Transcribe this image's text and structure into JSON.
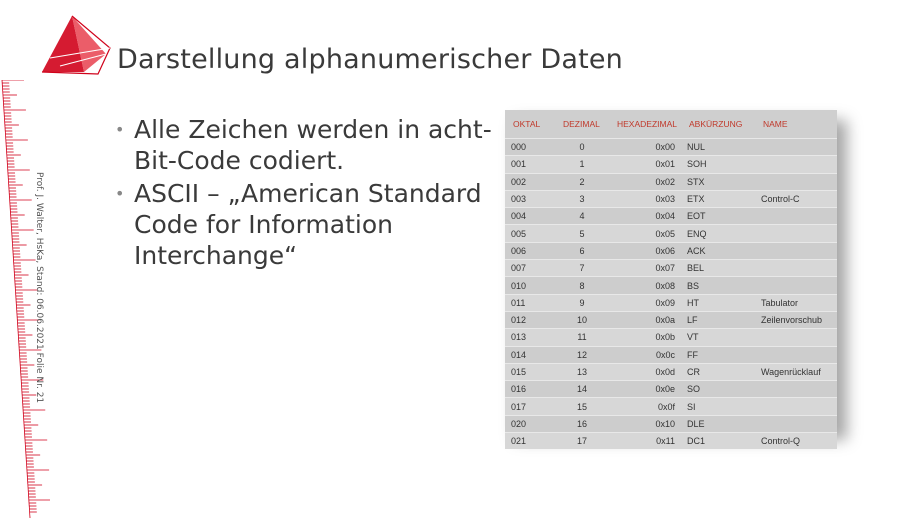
{
  "slide": {
    "title": "Darstellung alphanumerischer Daten",
    "sidetext": "Prof. J. Walter, HsKa, Stand: 06.06.2021 Folie Nr. 21"
  },
  "bullets": [
    "Alle Zeichen werden in acht-Bit-Code codiert.",
    "ASCII – „American Standard Code for Information Interchange“"
  ],
  "colors": {
    "logo": "#d0021b",
    "header": "#c0392b"
  },
  "table": {
    "headers": [
      "OKTAL",
      "DEZIMAL",
      "HEXADEZIMAL",
      "ABKÜRZUNG",
      "NAME"
    ],
    "rows": [
      [
        "000",
        "0",
        "0x00",
        "NUL",
        ""
      ],
      [
        "001",
        "1",
        "0x01",
        "SOH",
        ""
      ],
      [
        "002",
        "2",
        "0x02",
        "STX",
        ""
      ],
      [
        "003",
        "3",
        "0x03",
        "ETX",
        "Control-C"
      ],
      [
        "004",
        "4",
        "0x04",
        "EOT",
        ""
      ],
      [
        "005",
        "5",
        "0x05",
        "ENQ",
        ""
      ],
      [
        "006",
        "6",
        "0x06",
        "ACK",
        ""
      ],
      [
        "007",
        "7",
        "0x07",
        "BEL",
        ""
      ],
      [
        "010",
        "8",
        "0x08",
        "BS",
        ""
      ],
      [
        "011",
        "9",
        "0x09",
        "HT",
        "Tabulator"
      ],
      [
        "012",
        "10",
        "0x0a",
        "LF",
        "Zeilenvorschub"
      ],
      [
        "013",
        "11",
        "0x0b",
        "VT",
        ""
      ],
      [
        "014",
        "12",
        "0x0c",
        "FF",
        ""
      ],
      [
        "015",
        "13",
        "0x0d",
        "CR",
        "Wagenrücklauf"
      ],
      [
        "016",
        "14",
        "0x0e",
        "SO",
        ""
      ],
      [
        "017",
        "15",
        "0x0f",
        "SI",
        ""
      ],
      [
        "020",
        "16",
        "0x10",
        "DLE",
        ""
      ],
      [
        "021",
        "17",
        "0x11",
        "DC1",
        "Control-Q"
      ]
    ]
  }
}
